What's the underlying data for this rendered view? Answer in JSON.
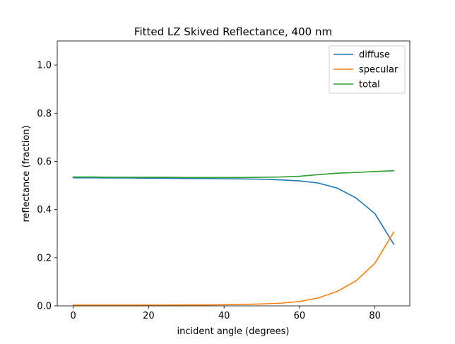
{
  "chart_data": {
    "type": "line",
    "title": "Fitted LZ Skived Reflectance, 400 nm",
    "xlabel": "incident angle (degrees)",
    "ylabel": "reflectance (fraction)",
    "xlim": [
      -4.25,
      89.25
    ],
    "ylim": [
      0.0,
      1.1
    ],
    "xticks": [
      0,
      20,
      40,
      60,
      80
    ],
    "yticks": [
      0.0,
      0.2,
      0.4,
      0.6,
      0.8,
      1.0
    ],
    "xtick_labels": [
      "0",
      "20",
      "40",
      "60",
      "80"
    ],
    "ytick_labels": [
      "0.0",
      "0.2",
      "0.4",
      "0.6",
      "0.8",
      "1.0"
    ],
    "grid": false,
    "legend_position": "top-right",
    "x": [
      0,
      5,
      10,
      15,
      20,
      25,
      30,
      35,
      40,
      45,
      50,
      55,
      60,
      65,
      70,
      75,
      80,
      85
    ],
    "series": [
      {
        "name": "diffuse",
        "color": "#1f77b4",
        "values": [
          0.532,
          0.532,
          0.531,
          0.531,
          0.53,
          0.53,
          0.529,
          0.529,
          0.528,
          0.527,
          0.526,
          0.523,
          0.519,
          0.51,
          0.489,
          0.448,
          0.383,
          0.256
        ]
      },
      {
        "name": "specular",
        "color": "#ff7f0e",
        "values": [
          0.003,
          0.003,
          0.003,
          0.003,
          0.003,
          0.003,
          0.004,
          0.004,
          0.005,
          0.006,
          0.008,
          0.011,
          0.018,
          0.033,
          0.06,
          0.104,
          0.177,
          0.307
        ]
      },
      {
        "name": "total",
        "color": "#2ca02c",
        "values": [
          0.535,
          0.535,
          0.534,
          0.534,
          0.534,
          0.534,
          0.533,
          0.533,
          0.533,
          0.533,
          0.534,
          0.535,
          0.538,
          0.545,
          0.551,
          0.554,
          0.558,
          0.561
        ]
      }
    ]
  }
}
